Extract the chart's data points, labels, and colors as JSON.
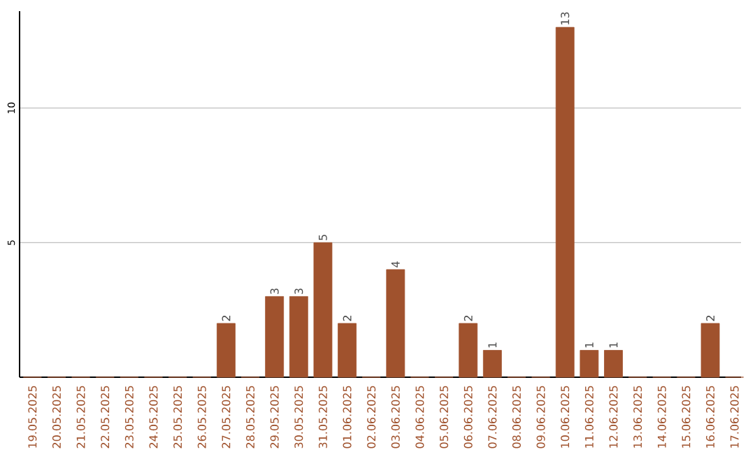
{
  "chart_data": {
    "type": "bar",
    "categories": [
      "19.05.2025",
      "20.05.2025",
      "21.05.2025",
      "22.05.2025",
      "23.05.2025",
      "24.05.2025",
      "25.05.2025",
      "26.05.2025",
      "27.05.2025",
      "28.05.2025",
      "29.05.2025",
      "30.05.2025",
      "31.05.2025",
      "01.06.2025",
      "02.06.2025",
      "03.06.2025",
      "04.06.2025",
      "05.06.2025",
      "06.06.2025",
      "07.06.2025",
      "08.06.2025",
      "09.06.2025",
      "10.06.2025",
      "11.06.2025",
      "12.06.2025",
      "13.06.2025",
      "14.06.2025",
      "15.06.2025",
      "16.06.2025",
      "17.06.2025"
    ],
    "values": [
      0,
      0,
      0,
      0,
      0,
      0,
      0,
      0,
      2,
      0,
      3,
      3,
      5,
      2,
      0,
      4,
      0,
      0,
      2,
      1,
      0,
      0,
      13,
      1,
      1,
      0,
      0,
      0,
      2,
      0
    ],
    "value_labels": [
      null,
      null,
      null,
      null,
      null,
      null,
      null,
      null,
      "2",
      null,
      "3",
      "3",
      "5",
      "2",
      null,
      "4",
      null,
      null,
      "2",
      "1",
      null,
      null,
      "13",
      "1",
      "1",
      null,
      null,
      null,
      "2",
      null
    ],
    "color": "#a0522d",
    "ylim": [
      0,
      13.6
    ],
    "yticks": [
      5,
      10
    ],
    "grid": "y"
  }
}
